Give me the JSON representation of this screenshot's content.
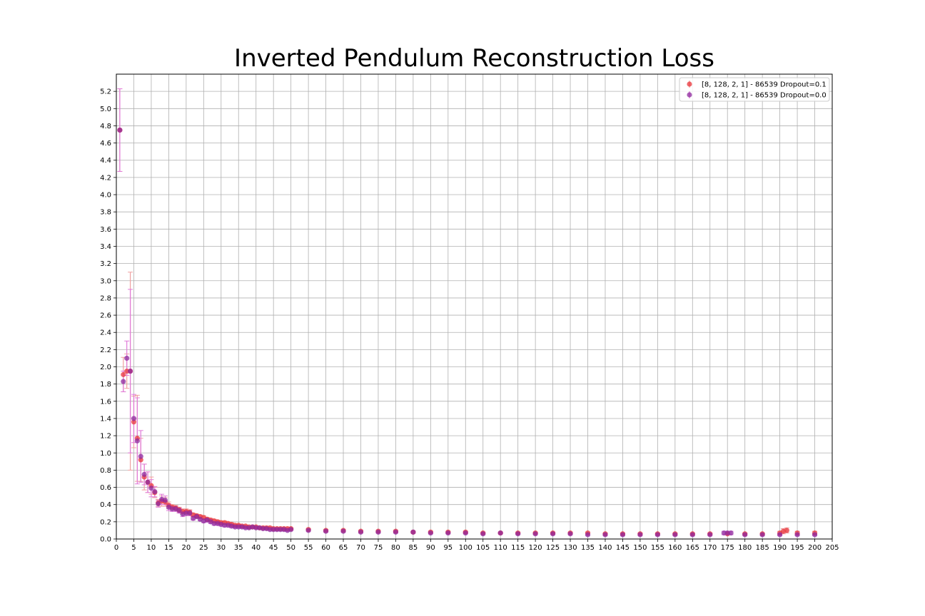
{
  "chart_data": {
    "type": "scatter",
    "title": "Inverted Pendulum Reconstruction Loss",
    "xlabel": "",
    "ylabel": "",
    "xlim": [
      0,
      205
    ],
    "ylim": [
      0,
      5.4
    ],
    "x_ticks": [
      0,
      5,
      10,
      15,
      20,
      25,
      30,
      35,
      40,
      45,
      50,
      55,
      60,
      65,
      70,
      75,
      80,
      85,
      90,
      95,
      100,
      105,
      110,
      115,
      120,
      125,
      130,
      135,
      140,
      145,
      150,
      155,
      160,
      165,
      170,
      175,
      180,
      185,
      190,
      195,
      200,
      205
    ],
    "y_ticks": [
      0.0,
      0.2,
      0.4,
      0.6,
      0.8,
      1.0,
      1.2,
      1.4,
      1.6,
      1.8,
      2.0,
      2.2,
      2.4,
      2.6,
      2.8,
      3.0,
      3.2,
      3.4,
      3.6,
      3.8,
      4.0,
      4.2,
      4.4,
      4.6,
      4.8,
      5.0,
      5.2
    ],
    "grid": true,
    "legend_position": "top-right",
    "series": [
      {
        "name": "[8, 128, 2, 1] - 86539 Dropout=0.1",
        "color": "#e8343a",
        "error_color": "#f0a0a0",
        "x": [
          1,
          2,
          3,
          4,
          5,
          6,
          7,
          8,
          9,
          10,
          11,
          12,
          13,
          14,
          15,
          16,
          17,
          18,
          19,
          20,
          21,
          22,
          23,
          24,
          25,
          26,
          27,
          28,
          29,
          30,
          31,
          32,
          33,
          34,
          35,
          36,
          37,
          38,
          39,
          40,
          41,
          42,
          43,
          44,
          45,
          46,
          47,
          48,
          49,
          50,
          55,
          60,
          65,
          70,
          75,
          80,
          85,
          90,
          95,
          100,
          105,
          110,
          115,
          120,
          125,
          130,
          135,
          140,
          145,
          150,
          155,
          160,
          165,
          170,
          175,
          180,
          185,
          190,
          191,
          192,
          195,
          200
        ],
        "y": [
          4.75,
          1.91,
          1.95,
          1.95,
          1.36,
          1.17,
          0.92,
          0.72,
          0.66,
          0.62,
          0.54,
          0.42,
          0.44,
          0.43,
          0.39,
          0.37,
          0.36,
          0.34,
          0.32,
          0.32,
          0.31,
          0.28,
          0.27,
          0.26,
          0.25,
          0.23,
          0.22,
          0.21,
          0.2,
          0.19,
          0.19,
          0.18,
          0.17,
          0.16,
          0.16,
          0.15,
          0.15,
          0.14,
          0.14,
          0.14,
          0.13,
          0.13,
          0.13,
          0.13,
          0.12,
          0.12,
          0.12,
          0.12,
          0.12,
          0.12,
          0.11,
          0.1,
          0.1,
          0.09,
          0.09,
          0.09,
          0.08,
          0.08,
          0.08,
          0.08,
          0.07,
          0.07,
          0.07,
          0.07,
          0.07,
          0.07,
          0.07,
          0.06,
          0.06,
          0.06,
          0.06,
          0.06,
          0.06,
          0.06,
          0.06,
          0.06,
          0.06,
          0.07,
          0.09,
          0.1,
          0.07,
          0.07
        ],
        "err": [
          0.48,
          0.2,
          0.2,
          1.15,
          0.3,
          0.5,
          0.25,
          0.15,
          0.12,
          0.1,
          0.06,
          0.04,
          0.06,
          0.05,
          0.04,
          0.03,
          0.03,
          0.03,
          0.03,
          0.03,
          0.03,
          0.02,
          0.02,
          0.02,
          0.02,
          0.02,
          0.02,
          0.02,
          0.02,
          0.02,
          0.02,
          0.02,
          0.02,
          0.01,
          0.01,
          0.01,
          0.01,
          0.01,
          0.01,
          0.01,
          0.01,
          0.01,
          0.01,
          0.01,
          0.01,
          0.01,
          0.01,
          0.01,
          0.01,
          0.01,
          0.01,
          0.01,
          0.01,
          0.01,
          0.01,
          0.01,
          0.01,
          0.01,
          0.01,
          0.01,
          0.01,
          0.01,
          0.01,
          0.01,
          0.01,
          0.01,
          0.01,
          0.01,
          0.01,
          0.01,
          0.01,
          0.01,
          0.01,
          0.01,
          0.01,
          0.01,
          0.01,
          0.02,
          0.03,
          0.03,
          0.02,
          0.02
        ]
      },
      {
        "name": "[8, 128, 2, 1] - 86539 Dropout=0.0",
        "color": "#8e2a9e",
        "error_color": "#e07ad8",
        "x": [
          1,
          2,
          3,
          4,
          5,
          6,
          7,
          8,
          9,
          10,
          11,
          12,
          13,
          14,
          15,
          16,
          17,
          18,
          19,
          20,
          21,
          22,
          23,
          24,
          25,
          26,
          27,
          28,
          29,
          30,
          31,
          32,
          33,
          34,
          35,
          36,
          37,
          38,
          39,
          40,
          41,
          42,
          43,
          44,
          45,
          46,
          47,
          48,
          49,
          50,
          55,
          60,
          65,
          70,
          75,
          80,
          85,
          90,
          95,
          100,
          105,
          110,
          115,
          120,
          125,
          130,
          135,
          140,
          145,
          150,
          155,
          160,
          165,
          170,
          174,
          175,
          176,
          180,
          185,
          190,
          195,
          200
        ],
        "y": [
          4.75,
          1.83,
          2.1,
          1.95,
          1.4,
          1.14,
          0.96,
          0.75,
          0.66,
          0.59,
          0.55,
          0.41,
          0.46,
          0.45,
          0.37,
          0.35,
          0.35,
          0.33,
          0.29,
          0.3,
          0.3,
          0.24,
          0.26,
          0.23,
          0.21,
          0.22,
          0.2,
          0.18,
          0.18,
          0.17,
          0.16,
          0.16,
          0.15,
          0.14,
          0.14,
          0.14,
          0.13,
          0.13,
          0.14,
          0.13,
          0.13,
          0.12,
          0.12,
          0.11,
          0.11,
          0.11,
          0.11,
          0.11,
          0.1,
          0.11,
          0.1,
          0.09,
          0.09,
          0.08,
          0.08,
          0.08,
          0.08,
          0.07,
          0.07,
          0.07,
          0.06,
          0.07,
          0.06,
          0.06,
          0.06,
          0.06,
          0.05,
          0.05,
          0.05,
          0.05,
          0.05,
          0.05,
          0.05,
          0.05,
          0.07,
          0.07,
          0.07,
          0.05,
          0.05,
          0.05,
          0.05,
          0.05
        ],
        "err": [
          0.48,
          0.12,
          0.2,
          0.95,
          0.28,
          0.5,
          0.3,
          0.12,
          0.12,
          0.1,
          0.06,
          0.04,
          0.06,
          0.05,
          0.04,
          0.03,
          0.03,
          0.03,
          0.03,
          0.03,
          0.03,
          0.02,
          0.02,
          0.02,
          0.02,
          0.02,
          0.02,
          0.02,
          0.02,
          0.02,
          0.02,
          0.02,
          0.02,
          0.01,
          0.01,
          0.01,
          0.01,
          0.01,
          0.01,
          0.01,
          0.01,
          0.01,
          0.01,
          0.01,
          0.01,
          0.01,
          0.01,
          0.01,
          0.01,
          0.01,
          0.01,
          0.01,
          0.01,
          0.01,
          0.01,
          0.01,
          0.01,
          0.01,
          0.01,
          0.01,
          0.01,
          0.01,
          0.01,
          0.01,
          0.01,
          0.01,
          0.01,
          0.01,
          0.01,
          0.01,
          0.01,
          0.01,
          0.01,
          0.01,
          0.02,
          0.02,
          0.02,
          0.01,
          0.01,
          0.01,
          0.01,
          0.01
        ]
      }
    ]
  }
}
